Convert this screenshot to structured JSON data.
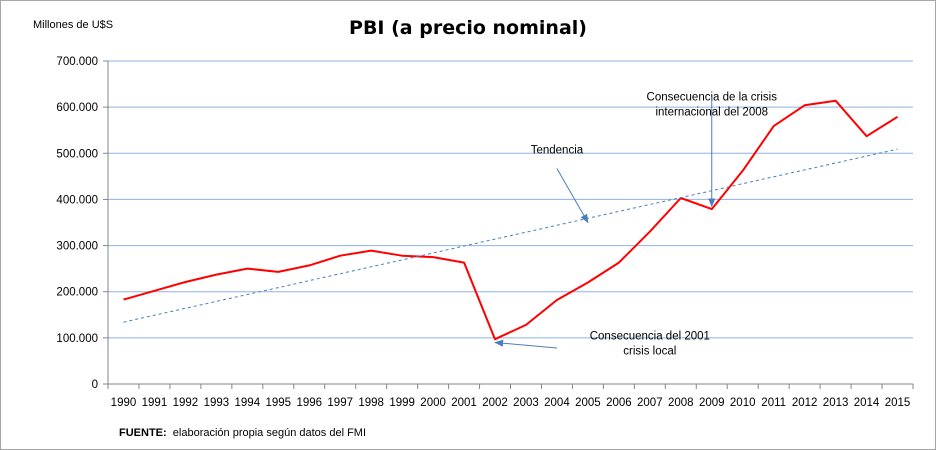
{
  "chart_data": {
    "type": "line",
    "title": "PBI (a precio nominal)",
    "ylabel": "Millones de U$S",
    "xlabel": "",
    "ylim": [
      0,
      700000
    ],
    "yticks": [
      0,
      100000,
      200000,
      300000,
      400000,
      500000,
      600000,
      700000
    ],
    "ytick_labels": [
      "0",
      "100.000",
      "200.000",
      "300.000",
      "400.000",
      "500.000",
      "600.000",
      "700.000"
    ],
    "grid": "horizontal",
    "categories": [
      "1990",
      "1991",
      "1992",
      "1993",
      "1994",
      "1995",
      "1996",
      "1997",
      "1998",
      "1999",
      "2000",
      "2001",
      "2002",
      "2003",
      "2004",
      "2005",
      "2006",
      "2007",
      "2008",
      "2009",
      "2010",
      "2011",
      "2012",
      "2013",
      "2014",
      "2015"
    ],
    "series": [
      {
        "style": "solid",
        "color": "#ff0000",
        "values": [
          183000,
          202000,
          221000,
          237000,
          250000,
          243000,
          257000,
          278000,
          289000,
          278000,
          275000,
          263000,
          97000,
          128000,
          182000,
          220000,
          263000,
          330000,
          403000,
          379000,
          462000,
          559000,
          604000,
          614000,
          537000,
          579000
        ]
      },
      {
        "style": "dashed",
        "color": "#4a7ebb",
        "label": "Tendencia",
        "values": [
          134000,
          149000,
          164000,
          179000,
          194000,
          209000,
          224000,
          239000,
          254000,
          269000,
          284000,
          299000,
          314000,
          329000,
          344000,
          359000,
          374000,
          389000,
          404000,
          419000,
          434000,
          449000,
          464000,
          479000,
          494000,
          509000
        ]
      }
    ],
    "annotations": [
      {
        "lines": [
          "Tendencia"
        ],
        "text_anchor_year": "2004",
        "text_value": 500000,
        "arrow_from_year": "2004",
        "arrow_from_value": 467000,
        "arrow_to_year": "2005",
        "arrow_to_value": 350000
      },
      {
        "lines": [
          "Consecuencia de la crisis",
          "internacional del 2008"
        ],
        "text_anchor_year": "2009",
        "text_value": 614000,
        "arrow_from_year": "2009",
        "arrow_from_value": 622000,
        "arrow_to_year": "2009",
        "arrow_to_value": 385000
      },
      {
        "lines": [
          "Consecuencia del 2001",
          "crisis local"
        ],
        "text_anchor_year": "2007",
        "text_value": 96000,
        "arrow_from_year": "2004",
        "arrow_from_value": 78000,
        "arrow_to_year": "2002",
        "arrow_to_value": 90000
      }
    ]
  },
  "source_note": {
    "label": "FUENTE:",
    "text": "  elaboración propia según datos del FMI"
  }
}
